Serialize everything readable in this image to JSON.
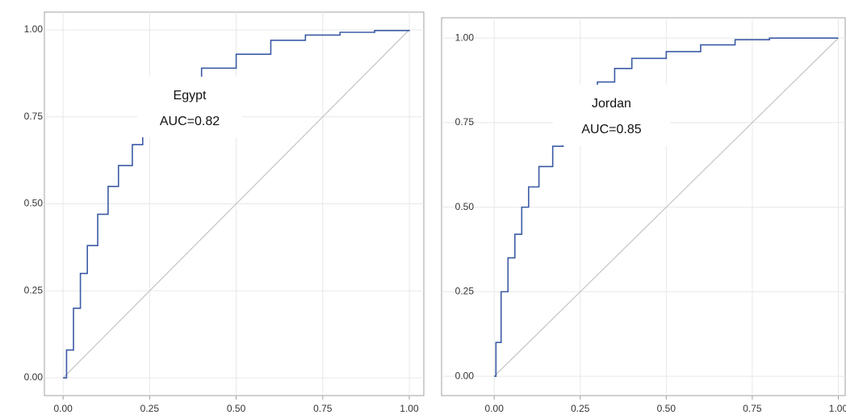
{
  "chart_data": [
    {
      "type": "line",
      "annotation": [
        "Egypt",
        "AUC=0.82"
      ],
      "x": [
        0,
        0.01,
        0.03,
        0.05,
        0.07,
        0.1,
        0.13,
        0.16,
        0.2,
        0.23,
        0.3,
        0.35,
        0.4,
        0.5,
        0.6,
        0.7,
        0.8,
        0.9,
        1
      ],
      "series": [
        {
          "color": "#3b5ba5",
          "values": [
            0,
            0.08,
            0.2,
            0.3,
            0.38,
            0.47,
            0.55,
            0.61,
            0.67,
            0.75,
            0.81,
            0.86,
            0.89,
            0.93,
            0.97,
            0.985,
            0.993,
            0.998,
            1
          ]
        }
      ],
      "diagonal": {
        "x": [
          0,
          1
        ],
        "y": [
          0,
          1
        ],
        "color": "#c4c4c4"
      },
      "xlim": [
        -0.054,
        1.042
      ],
      "ylim": [
        -0.051,
        1.051
      ],
      "xticks": [
        {
          "value": 0,
          "label": "0.00"
        },
        {
          "value": 0.25,
          "label": "0.25"
        },
        {
          "value": 0.5,
          "label": "0.50"
        },
        {
          "value": 0.75,
          "label": "0.75"
        },
        {
          "value": 1,
          "label": "1.00"
        }
      ],
      "yticks": [
        {
          "value": 0,
          "label": "0.00"
        },
        {
          "value": 0.25,
          "label": "0.25"
        },
        {
          "value": 0.5,
          "label": "0.50"
        },
        {
          "value": 0.75,
          "label": "0.75"
        },
        {
          "value": 1,
          "label": "1.00"
        }
      ],
      "grid": true
    },
    {
      "type": "line",
      "annotation": [
        "Jordan",
        "AUC=0.85"
      ],
      "x": [
        0,
        0.005,
        0.02,
        0.04,
        0.06,
        0.08,
        0.1,
        0.13,
        0.17,
        0.2,
        0.25,
        0.3,
        0.35,
        0.4,
        0.5,
        0.6,
        0.7,
        0.8,
        1
      ],
      "series": [
        {
          "color": "#3b5ba5",
          "values": [
            0,
            0.1,
            0.25,
            0.35,
            0.42,
            0.5,
            0.56,
            0.62,
            0.68,
            0.72,
            0.8,
            0.87,
            0.91,
            0.94,
            0.96,
            0.98,
            0.995,
            1,
            1
          ]
        }
      ],
      "diagonal": {
        "x": [
          0,
          1
        ],
        "y": [
          0,
          1
        ],
        "color": "#c4c4c4"
      },
      "xlim": [
        -0.153,
        1.02
      ],
      "ylim": [
        -0.057,
        1.06
      ],
      "xticks": [
        {
          "value": 0,
          "label": "0.00"
        },
        {
          "value": 0.25,
          "label": "0.25"
        },
        {
          "value": 0.5,
          "label": "0.50"
        },
        {
          "value": 0.75,
          "label": "0.75"
        },
        {
          "value": 1,
          "label": "1.00"
        }
      ],
      "yticks": [
        {
          "value": 0,
          "label": "0.00"
        },
        {
          "value": 0.25,
          "label": "0.25"
        },
        {
          "value": 0.5,
          "label": "0.50"
        },
        {
          "value": 0.75,
          "label": "0.75"
        },
        {
          "value": 1,
          "label": "1.00"
        }
      ],
      "grid": true
    }
  ]
}
